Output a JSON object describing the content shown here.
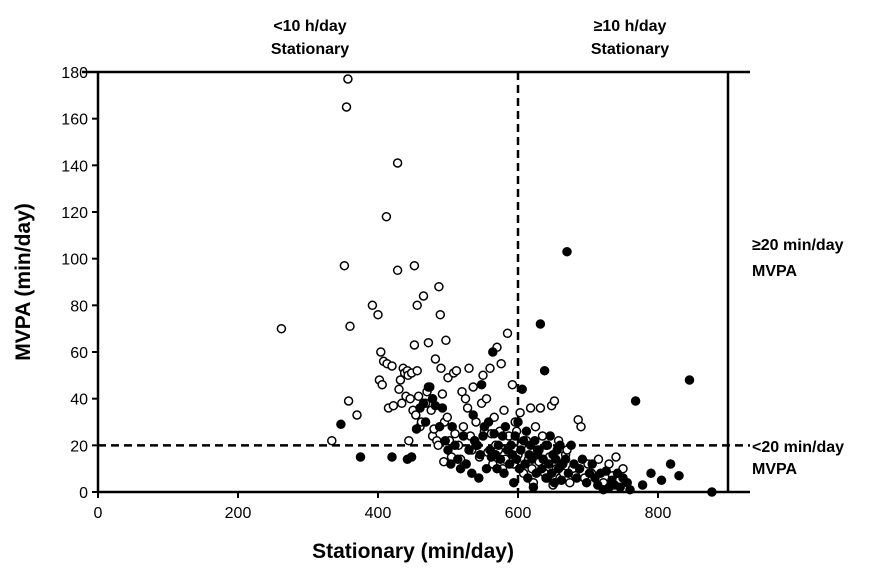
{
  "chart_data": {
    "type": "scatter",
    "title": "",
    "xlabel": "Stationary (min/day)",
    "ylabel": "MVPA (min/day)",
    "xlim": [
      0,
      900
    ],
    "ylim": [
      0,
      180
    ],
    "xticks": [
      0,
      200,
      400,
      600,
      800
    ],
    "yticks": [
      0,
      20,
      40,
      60,
      80,
      100,
      120,
      140,
      160,
      180
    ],
    "grid": false,
    "legend": "none",
    "thresholds": {
      "x": 600,
      "y": 20
    },
    "region_labels": {
      "top_left": [
        "<10 h/day",
        "Stationary"
      ],
      "top_right": [
        "≥10 h/day",
        "Stationary"
      ],
      "right_upper": [
        "≥20 min/day",
        "MVPA"
      ],
      "right_lower": [
        "<20 min/day",
        "MVPA"
      ]
    },
    "series": [
      {
        "marker": "open-circle",
        "color": "#000000",
        "points": [
          [
            262,
            70
          ],
          [
            334,
            22
          ],
          [
            352,
            97
          ],
          [
            355,
            165
          ],
          [
            357,
            177
          ],
          [
            358,
            39
          ],
          [
            360,
            71
          ],
          [
            370,
            33
          ],
          [
            392,
            80
          ],
          [
            400,
            76
          ],
          [
            402,
            48
          ],
          [
            404,
            60
          ],
          [
            406,
            46
          ],
          [
            408,
            56
          ],
          [
            412,
            118
          ],
          [
            413,
            55
          ],
          [
            415,
            36
          ],
          [
            420,
            54
          ],
          [
            422,
            37
          ],
          [
            428,
            95
          ],
          [
            428,
            141
          ],
          [
            430,
            44
          ],
          [
            432,
            48
          ],
          [
            434,
            38
          ],
          [
            436,
            53
          ],
          [
            438,
            51
          ],
          [
            440,
            41
          ],
          [
            442,
            52
          ],
          [
            443,
            50
          ],
          [
            444,
            22
          ],
          [
            446,
            40
          ],
          [
            448,
            51
          ],
          [
            450,
            35
          ],
          [
            452,
            97
          ],
          [
            452,
            63
          ],
          [
            454,
            33
          ],
          [
            456,
            80
          ],
          [
            456,
            52
          ],
          [
            458,
            41
          ],
          [
            460,
            28
          ],
          [
            462,
            30
          ],
          [
            465,
            84
          ],
          [
            468,
            38
          ],
          [
            470,
            43
          ],
          [
            472,
            64
          ],
          [
            474,
            45
          ],
          [
            476,
            35
          ],
          [
            478,
            24
          ],
          [
            480,
            27
          ],
          [
            482,
            57
          ],
          [
            484,
            22
          ],
          [
            486,
            20
          ],
          [
            487,
            88
          ],
          [
            489,
            76
          ],
          [
            490,
            53
          ],
          [
            492,
            42
          ],
          [
            494,
            13
          ],
          [
            495,
            30
          ],
          [
            497,
            65
          ],
          [
            499,
            32
          ],
          [
            500,
            49
          ],
          [
            502,
            22
          ],
          [
            505,
            15
          ],
          [
            508,
            51
          ],
          [
            510,
            25
          ],
          [
            512,
            52
          ],
          [
            515,
            20
          ],
          [
            518,
            14
          ],
          [
            520,
            43
          ],
          [
            522,
            28
          ],
          [
            525,
            40
          ],
          [
            528,
            36
          ],
          [
            530,
            53
          ],
          [
            532,
            24
          ],
          [
            534,
            18
          ],
          [
            536,
            45
          ],
          [
            538,
            22
          ],
          [
            540,
            30
          ],
          [
            542,
            20
          ],
          [
            545,
            15
          ],
          [
            548,
            38
          ],
          [
            550,
            50
          ],
          [
            552,
            26
          ],
          [
            555,
            40
          ],
          [
            557,
            17
          ],
          [
            560,
            53
          ],
          [
            562,
            25
          ],
          [
            564,
            12
          ],
          [
            566,
            32
          ],
          [
            568,
            20
          ],
          [
            570,
            62
          ],
          [
            572,
            18
          ],
          [
            574,
            26
          ],
          [
            576,
            55
          ],
          [
            578,
            10
          ],
          [
            580,
            35
          ],
          [
            582,
            14
          ],
          [
            585,
            68
          ],
          [
            587,
            24
          ],
          [
            590,
            20
          ],
          [
            592,
            46
          ],
          [
            594,
            12
          ],
          [
            596,
            30
          ],
          [
            598,
            26
          ],
          [
            600,
            16
          ],
          [
            603,
            34
          ],
          [
            605,
            20
          ],
          [
            608,
            8
          ],
          [
            612,
            22
          ],
          [
            615,
            14
          ],
          [
            618,
            36
          ],
          [
            620,
            10
          ],
          [
            622,
            4
          ],
          [
            625,
            28
          ],
          [
            628,
            18
          ],
          [
            630,
            13
          ],
          [
            632,
            36
          ],
          [
            635,
            24
          ],
          [
            638,
            8
          ],
          [
            640,
            20
          ],
          [
            642,
            6
          ],
          [
            645,
            15
          ],
          [
            648,
            37
          ],
          [
            650,
            3
          ],
          [
            652,
            39
          ],
          [
            655,
            10
          ],
          [
            658,
            22
          ],
          [
            660,
            6
          ],
          [
            662,
            12
          ],
          [
            665,
            8
          ],
          [
            668,
            16
          ],
          [
            670,
            18
          ],
          [
            674,
            4
          ],
          [
            678,
            10
          ],
          [
            682,
            7
          ],
          [
            686,
            31
          ],
          [
            690,
            28
          ],
          [
            695,
            6
          ],
          [
            700,
            12
          ],
          [
            705,
            8
          ],
          [
            715,
            14
          ],
          [
            722,
            4
          ],
          [
            730,
            12
          ],
          [
            735,
            7
          ],
          [
            740,
            15
          ],
          [
            745,
            5
          ],
          [
            750,
            10
          ]
        ]
      },
      {
        "marker": "filled-circle",
        "color": "#000000",
        "points": [
          [
            347,
            29
          ],
          [
            375,
            15
          ],
          [
            420,
            15
          ],
          [
            442,
            14
          ],
          [
            448,
            15
          ],
          [
            455,
            27
          ],
          [
            460,
            36
          ],
          [
            465,
            38
          ],
          [
            468,
            30
          ],
          [
            472,
            45
          ],
          [
            478,
            40
          ],
          [
            482,
            37
          ],
          [
            488,
            28
          ],
          [
            492,
            36
          ],
          [
            496,
            22
          ],
          [
            500,
            18
          ],
          [
            504,
            12
          ],
          [
            506,
            28
          ],
          [
            510,
            20
          ],
          [
            514,
            14
          ],
          [
            518,
            10
          ],
          [
            522,
            24
          ],
          [
            526,
            12
          ],
          [
            530,
            18
          ],
          [
            534,
            8
          ],
          [
            536,
            33
          ],
          [
            538,
            22
          ],
          [
            540,
            20
          ],
          [
            544,
            6
          ],
          [
            546,
            16
          ],
          [
            548,
            46
          ],
          [
            550,
            24
          ],
          [
            552,
            28
          ],
          [
            555,
            10
          ],
          [
            558,
            30
          ],
          [
            560,
            18
          ],
          [
            562,
            15
          ],
          [
            564,
            60
          ],
          [
            566,
            25
          ],
          [
            568,
            16
          ],
          [
            570,
            10
          ],
          [
            572,
            20
          ],
          [
            575,
            14
          ],
          [
            578,
            24
          ],
          [
            580,
            8
          ],
          [
            582,
            28
          ],
          [
            585,
            18
          ],
          [
            588,
            12
          ],
          [
            590,
            20
          ],
          [
            592,
            16
          ],
          [
            594,
            4
          ],
          [
            596,
            24
          ],
          [
            598,
            14
          ],
          [
            600,
            30
          ],
          [
            602,
            10
          ],
          [
            604,
            18
          ],
          [
            606,
            44
          ],
          [
            608,
            22
          ],
          [
            610,
            12
          ],
          [
            612,
            26
          ],
          [
            614,
            6
          ],
          [
            616,
            16
          ],
          [
            618,
            20
          ],
          [
            620,
            14
          ],
          [
            622,
            2
          ],
          [
            624,
            22
          ],
          [
            626,
            8
          ],
          [
            628,
            16
          ],
          [
            630,
            18
          ],
          [
            632,
            72
          ],
          [
            634,
            10
          ],
          [
            636,
            14
          ],
          [
            638,
            52
          ],
          [
            640,
            6
          ],
          [
            642,
            20
          ],
          [
            644,
            12
          ],
          [
            646,
            24
          ],
          [
            648,
            8
          ],
          [
            650,
            16
          ],
          [
            652,
            4
          ],
          [
            654,
            14
          ],
          [
            656,
            18
          ],
          [
            658,
            10
          ],
          [
            660,
            20
          ],
          [
            662,
            5
          ],
          [
            664,
            12
          ],
          [
            668,
            14
          ],
          [
            670,
            103
          ],
          [
            672,
            8
          ],
          [
            676,
            20
          ],
          [
            680,
            12
          ],
          [
            684,
            6
          ],
          [
            688,
            10
          ],
          [
            692,
            14
          ],
          [
            698,
            4
          ],
          [
            702,
            8
          ],
          [
            706,
            12
          ],
          [
            710,
            6
          ],
          [
            714,
            3
          ],
          [
            718,
            8
          ],
          [
            722,
            1
          ],
          [
            726,
            9
          ],
          [
            730,
            2
          ],
          [
            734,
            5
          ],
          [
            738,
            3
          ],
          [
            742,
            8
          ],
          [
            746,
            2
          ],
          [
            750,
            6
          ],
          [
            756,
            4
          ],
          [
            760,
            1
          ],
          [
            768,
            39
          ],
          [
            778,
            3
          ],
          [
            790,
            8
          ],
          [
            805,
            5
          ],
          [
            818,
            12
          ],
          [
            830,
            7
          ],
          [
            845,
            48
          ],
          [
            877,
            0
          ]
        ]
      }
    ]
  }
}
